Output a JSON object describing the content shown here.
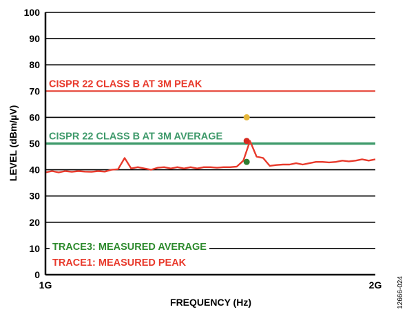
{
  "figure_id": "12666-024",
  "colors": {
    "peak_limit": "#e8392b",
    "average_limit": "#3f9a6b",
    "trace1": "#e8392b",
    "trace3": "#2e8b2e",
    "marker_yellow": "#e6b73a",
    "marker_red": "#d62b20",
    "marker_green": "#2e7d32",
    "grid": "#000000"
  },
  "chart_data": {
    "type": "line",
    "title": "",
    "xlabel": "FREQUENCY (Hz)",
    "ylabel": "LEVEL (dBm/µV)",
    "xlim": [
      1,
      2
    ],
    "x_unit": "GHz",
    "x_tick_labels": [
      "1G",
      "2G"
    ],
    "ylim": [
      0,
      100
    ],
    "y_ticks": [
      0,
      10,
      20,
      30,
      40,
      50,
      60,
      70,
      80,
      90,
      100
    ],
    "y_tick_labels": [
      "0",
      "10",
      "20",
      "30",
      "40",
      "50",
      "60",
      "70",
      "80",
      "90",
      "100"
    ],
    "grid": "horizontal",
    "reference_lines": [
      {
        "label": "CISPR 22 CLASS B AT 3M PEAK",
        "y": 70
      },
      {
        "label": "CISPR 22 CLASS B AT 3M AVERAGE",
        "y": 50
      }
    ],
    "legend": [
      {
        "label": "TRACE3: MEASURED AVERAGE"
      },
      {
        "label": "TRACE1: MEASURED PEAK"
      }
    ],
    "legend_position": "bottom-left",
    "series": [
      {
        "values_role": "trace1",
        "x": [
          1.0,
          1.02,
          1.04,
          1.06,
          1.08,
          1.1,
          1.12,
          1.14,
          1.16,
          1.18,
          1.2,
          1.22,
          1.24,
          1.26,
          1.28,
          1.3,
          1.32,
          1.34,
          1.36,
          1.38,
          1.4,
          1.42,
          1.44,
          1.46,
          1.48,
          1.5,
          1.52,
          1.54,
          1.56,
          1.58,
          1.6,
          1.62,
          1.64,
          1.66,
          1.68,
          1.7,
          1.72,
          1.74,
          1.76,
          1.78,
          1.8,
          1.82,
          1.84,
          1.86,
          1.88,
          1.9,
          1.92,
          1.94,
          1.96,
          1.98,
          2.0
        ],
        "y": [
          39.0,
          39.5,
          39.0,
          39.5,
          39.2,
          39.5,
          39.3,
          39.2,
          39.5,
          39.3,
          40.0,
          40.2,
          44.5,
          40.5,
          41.0,
          40.5,
          40.0,
          40.8,
          41.0,
          40.5,
          41.0,
          40.5,
          41.0,
          40.5,
          41.0,
          41.0,
          40.8,
          41.0,
          41.0,
          41.2,
          43.5,
          51.0,
          45.0,
          44.5,
          41.5,
          41.8,
          42.0,
          42.0,
          42.5,
          42.0,
          42.5,
          43.0,
          43.0,
          42.8,
          43.0,
          43.5,
          43.2,
          43.5,
          44.0,
          43.5,
          44.0
        ]
      }
    ],
    "markers": [
      {
        "x": 1.61,
        "y": 60,
        "role": "marker_yellow"
      },
      {
        "x": 1.61,
        "y": 51,
        "role": "marker_red"
      },
      {
        "x": 1.61,
        "y": 43,
        "role": "marker_green"
      }
    ]
  }
}
